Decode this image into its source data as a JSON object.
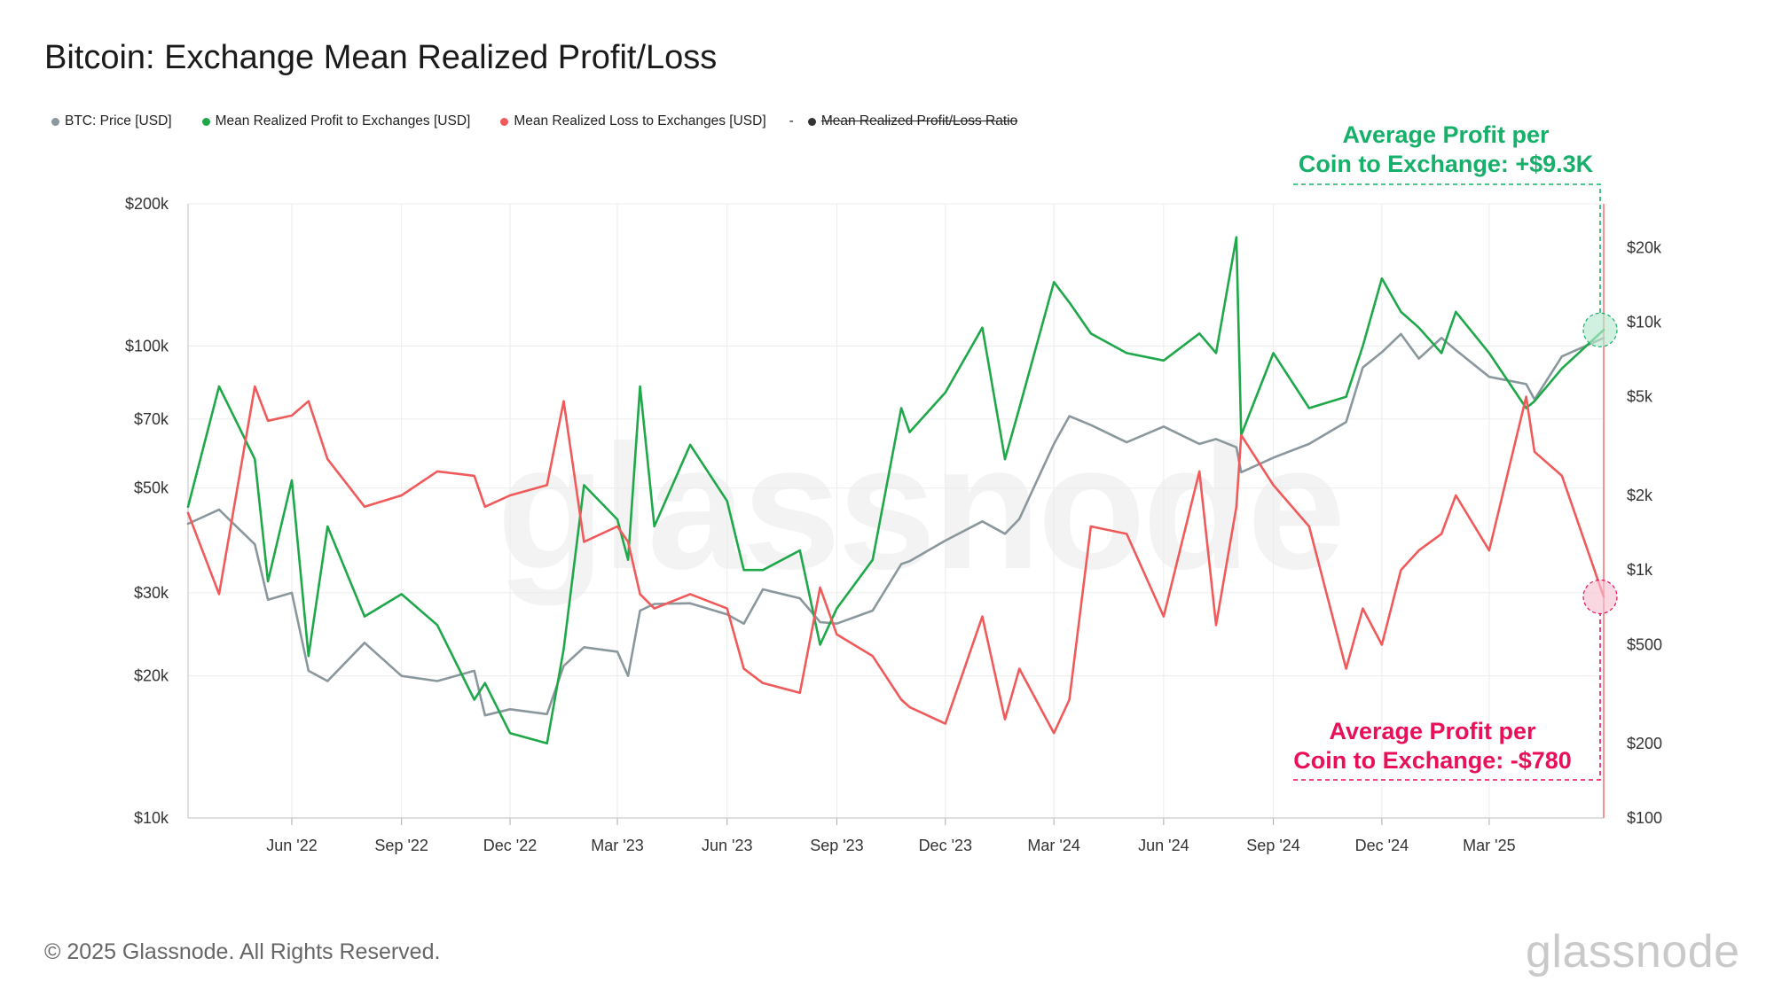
{
  "title": "Bitcoin: Exchange Mean Realized Profit/Loss",
  "legend": {
    "items": [
      {
        "label": "BTC: Price [USD]",
        "color": "#8a979c"
      },
      {
        "label": "Mean Realized Profit to Exchanges [USD]",
        "color": "#1fa84a"
      },
      {
        "label": "Mean Realized Loss to Exchanges [USD]",
        "color": "#f05a5a"
      }
    ],
    "dash": "-",
    "disabled_label": "Mean Realized Profit/Loss Ratio",
    "disabled_color": "#333333"
  },
  "annotations": {
    "profit_line1": "Average Profit per",
    "profit_line2": "Coin to Exchange: +$9.3K",
    "loss_line1": "Average Profit per",
    "loss_line2": "Coin to Exchange: -$780"
  },
  "footer": "© 2025 Glassnode. All Rights Reserved.",
  "logo": "glassnode",
  "watermark": "glassnode",
  "chart_data": {
    "type": "line",
    "title": "Bitcoin: Exchange Mean Realized Profit/Loss",
    "x_ticks": [
      "Jun '22",
      "Sep '22",
      "Dec '22",
      "Mar '23",
      "Jun '23",
      "Sep '23",
      "Dec '23",
      "Mar '24",
      "Jun '24",
      "Sep '24",
      "Dec '24",
      "Mar '25"
    ],
    "x_tick_dates": [
      "2022-06-01",
      "2022-09-01",
      "2022-12-01",
      "2023-03-01",
      "2023-06-01",
      "2023-09-01",
      "2023-12-01",
      "2024-03-01",
      "2024-06-01",
      "2024-09-01",
      "2024-12-01",
      "2025-03-01"
    ],
    "x_range": [
      "2022-03-06",
      "2025-06-05"
    ],
    "left_axis": {
      "scale": "log",
      "range": [
        10000,
        200000
      ],
      "ticks": [
        10000,
        20000,
        30000,
        50000,
        70000,
        100000,
        200000
      ],
      "tick_labels": [
        "$10k",
        "$20k",
        "$30k",
        "$50k",
        "$70k",
        "$100k",
        "$200k"
      ]
    },
    "right_axis": {
      "scale": "log",
      "range": [
        100,
        30000
      ],
      "ticks": [
        100,
        200,
        500,
        1000,
        2000,
        5000,
        10000,
        20000
      ],
      "tick_labels": [
        "$100",
        "$200",
        "$500",
        "$1k",
        "$2k",
        "$5k",
        "$10k",
        "$20k"
      ]
    },
    "grid": true,
    "legend_position": "top-left",
    "series": [
      {
        "name": "BTC: Price [USD]",
        "axis": "left",
        "color": "#8a979c",
        "x": [
          "2022-03-06",
          "2022-04-01",
          "2022-05-01",
          "2022-05-12",
          "2022-06-01",
          "2022-06-15",
          "2022-07-01",
          "2022-08-01",
          "2022-09-01",
          "2022-10-01",
          "2022-11-01",
          "2022-11-10",
          "2022-12-01",
          "2023-01-01",
          "2023-01-15",
          "2023-02-01",
          "2023-03-01",
          "2023-03-10",
          "2023-03-20",
          "2023-04-01",
          "2023-05-01",
          "2023-06-01",
          "2023-06-15",
          "2023-07-01",
          "2023-08-01",
          "2023-08-18",
          "2023-09-01",
          "2023-10-01",
          "2023-10-25",
          "2023-11-01",
          "2023-12-01",
          "2024-01-01",
          "2024-01-20",
          "2024-02-01",
          "2024-03-01",
          "2024-03-14",
          "2024-04-01",
          "2024-05-01",
          "2024-06-01",
          "2024-07-01",
          "2024-07-15",
          "2024-08-01",
          "2024-08-05",
          "2024-09-01",
          "2024-10-01",
          "2024-11-01",
          "2024-11-15",
          "2024-12-01",
          "2024-12-17",
          "2025-01-01",
          "2025-01-20",
          "2025-02-01",
          "2025-03-01",
          "2025-04-01",
          "2025-04-08",
          "2025-05-01",
          "2025-06-05"
        ],
        "values": [
          42000,
          45000,
          38000,
          29000,
          30000,
          20500,
          19500,
          23500,
          20000,
          19500,
          20500,
          16500,
          17000,
          16600,
          21000,
          23000,
          22500,
          20000,
          27500,
          28400,
          28500,
          27000,
          25800,
          30500,
          29200,
          26000,
          25800,
          27500,
          34500,
          35000,
          38700,
          42500,
          40000,
          43000,
          62000,
          71000,
          68000,
          62500,
          67500,
          62000,
          63500,
          61000,
          54000,
          58000,
          62000,
          69000,
          90000,
          97000,
          106000,
          94000,
          104000,
          98000,
          86000,
          83000,
          77000,
          95000,
          104000
        ]
      },
      {
        "name": "Mean Realized Profit to Exchanges [USD]",
        "axis": "right",
        "color": "#1fa84a",
        "x": [
          "2022-03-06",
          "2022-04-01",
          "2022-05-01",
          "2022-05-12",
          "2022-06-01",
          "2022-06-15",
          "2022-07-01",
          "2022-08-01",
          "2022-09-01",
          "2022-10-01",
          "2022-11-01",
          "2022-11-10",
          "2022-12-01",
          "2023-01-01",
          "2023-01-15",
          "2023-02-01",
          "2023-03-01",
          "2023-03-10",
          "2023-03-20",
          "2023-04-01",
          "2023-05-01",
          "2023-06-01",
          "2023-06-15",
          "2023-07-01",
          "2023-08-01",
          "2023-08-18",
          "2023-09-01",
          "2023-10-01",
          "2023-10-25",
          "2023-11-01",
          "2023-12-01",
          "2024-01-01",
          "2024-01-20",
          "2024-02-01",
          "2024-03-01",
          "2024-03-14",
          "2024-04-01",
          "2024-05-01",
          "2024-06-01",
          "2024-07-01",
          "2024-07-15",
          "2024-08-01",
          "2024-08-05",
          "2024-09-01",
          "2024-10-01",
          "2024-11-01",
          "2024-11-15",
          "2024-12-01",
          "2024-12-17",
          "2025-01-01",
          "2025-01-20",
          "2025-02-01",
          "2025-03-01",
          "2025-04-01",
          "2025-04-08",
          "2025-05-01",
          "2025-06-05"
        ],
        "values": [
          1800,
          5500,
          2800,
          900,
          2300,
          450,
          1500,
          650,
          800,
          600,
          300,
          350,
          220,
          200,
          480,
          2200,
          1600,
          1100,
          5500,
          1500,
          3200,
          1900,
          1000,
          1000,
          1200,
          500,
          700,
          1100,
          4500,
          3600,
          5200,
          9500,
          2800,
          4500,
          14500,
          12000,
          9000,
          7500,
          7000,
          9000,
          7500,
          22000,
          3500,
          7500,
          4500,
          5000,
          8000,
          15000,
          11000,
          9500,
          7500,
          11000,
          7500,
          4500,
          4800,
          6500,
          9300
        ]
      },
      {
        "name": "Mean Realized Loss to Exchanges [USD]",
        "axis": "right",
        "color": "#f05a5a",
        "x": [
          "2022-03-06",
          "2022-04-01",
          "2022-05-01",
          "2022-05-12",
          "2022-06-01",
          "2022-06-15",
          "2022-07-01",
          "2022-08-01",
          "2022-09-01",
          "2022-10-01",
          "2022-11-01",
          "2022-11-10",
          "2022-12-01",
          "2023-01-01",
          "2023-01-15",
          "2023-02-01",
          "2023-03-01",
          "2023-03-10",
          "2023-03-20",
          "2023-04-01",
          "2023-05-01",
          "2023-06-01",
          "2023-06-15",
          "2023-07-01",
          "2023-08-01",
          "2023-08-18",
          "2023-09-01",
          "2023-10-01",
          "2023-10-25",
          "2023-11-01",
          "2023-12-01",
          "2024-01-01",
          "2024-01-20",
          "2024-02-01",
          "2024-03-01",
          "2024-03-14",
          "2024-04-01",
          "2024-05-01",
          "2024-06-01",
          "2024-07-01",
          "2024-07-15",
          "2024-08-01",
          "2024-08-05",
          "2024-09-01",
          "2024-10-01",
          "2024-11-01",
          "2024-11-15",
          "2024-12-01",
          "2024-12-17",
          "2025-01-01",
          "2025-01-20",
          "2025-02-01",
          "2025-03-01",
          "2025-04-01",
          "2025-04-08",
          "2025-05-01",
          "2025-06-05"
        ],
        "values": [
          1700,
          800,
          5500,
          4000,
          4200,
          4800,
          2800,
          1800,
          2000,
          2500,
          2400,
          1800,
          2000,
          2200,
          4800,
          1300,
          1500,
          1300,
          800,
          700,
          800,
          700,
          400,
          350,
          320,
          850,
          550,
          450,
          300,
          280,
          240,
          650,
          250,
          400,
          220,
          300,
          1500,
          1400,
          650,
          2500,
          600,
          1800,
          3500,
          2200,
          1500,
          400,
          700,
          500,
          1000,
          1200,
          1400,
          2000,
          1200,
          5000,
          3000,
          2400,
          780
        ]
      }
    ]
  }
}
